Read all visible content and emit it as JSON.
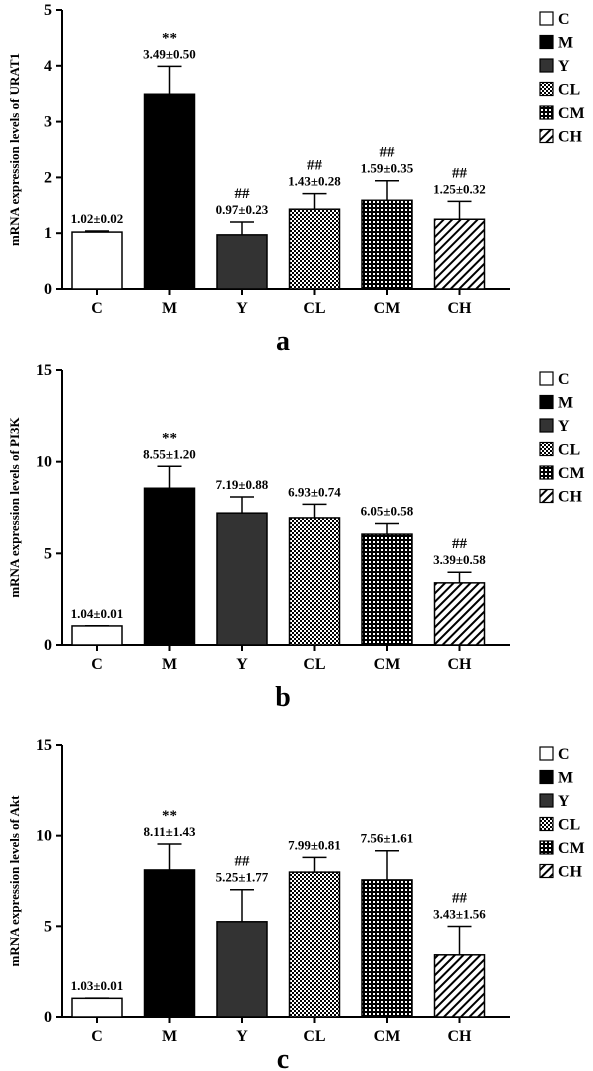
{
  "chart_data": [
    {
      "type": "bar",
      "panel_label": "a",
      "ylabel": "mRNA expression levels of URAT1",
      "ylim": [
        0,
        5
      ],
      "yticks": [
        "0",
        "1",
        "2",
        "3",
        "4",
        "5"
      ],
      "categories": [
        "C",
        "M",
        "Y",
        "CL",
        "CM",
        "CH"
      ],
      "values": [
        1.02,
        3.49,
        0.97,
        1.43,
        1.59,
        1.25
      ],
      "errors": [
        0.02,
        0.5,
        0.23,
        0.28,
        0.35,
        0.32
      ],
      "value_labels": [
        "1.02±0.02",
        "3.49±0.50",
        "0.97±0.23",
        "1.43±0.28",
        "1.59±0.35",
        "1.25±0.32"
      ],
      "significance": [
        "",
        "**",
        "##",
        "##",
        "##",
        "##"
      ],
      "legend": [
        "C",
        "M",
        "Y",
        "CL",
        "CM",
        "CH"
      ],
      "legend_position": "top-right"
    },
    {
      "type": "bar",
      "panel_label": "b",
      "ylabel": "mRNA expression levels of PI3K",
      "ylim": [
        0,
        15
      ],
      "yticks": [
        "0",
        "5",
        "10",
        "15"
      ],
      "categories": [
        "C",
        "M",
        "Y",
        "CL",
        "CM",
        "CH"
      ],
      "values": [
        1.04,
        8.55,
        7.19,
        6.93,
        6.05,
        3.39
      ],
      "errors": [
        0.01,
        1.2,
        0.88,
        0.74,
        0.58,
        0.58
      ],
      "value_labels": [
        "1.04±0.01",
        "8.55±1.20",
        "7.19±0.88",
        "6.93±0.74",
        "6.05±0.58",
        "3.39±0.58"
      ],
      "significance": [
        "",
        "**",
        "",
        "",
        "",
        "##"
      ],
      "legend": [
        "C",
        "M",
        "Y",
        "CL",
        "CM",
        "CH"
      ],
      "legend_position": "top-right"
    },
    {
      "type": "bar",
      "panel_label": "c",
      "ylabel": "mRNA expression levels of Akt",
      "ylim": [
        0,
        15
      ],
      "yticks": [
        "0",
        "5",
        "10",
        "15"
      ],
      "categories": [
        "C",
        "M",
        "Y",
        "CL",
        "CM",
        "CH"
      ],
      "values": [
        1.03,
        8.11,
        5.25,
        7.99,
        7.56,
        3.43
      ],
      "errors": [
        0.01,
        1.43,
        1.77,
        0.81,
        1.61,
        1.56
      ],
      "value_labels": [
        "1.03±0.01",
        "8.11±1.43",
        "5.25±1.77",
        "7.99±0.81",
        "7.56±1.61",
        "3.43±1.56"
      ],
      "significance": [
        "",
        "**",
        "##",
        "",
        "",
        "##"
      ],
      "legend": [
        "C",
        "M",
        "Y",
        "CL",
        "CM",
        "CH"
      ],
      "legend_position": "top-right"
    }
  ]
}
